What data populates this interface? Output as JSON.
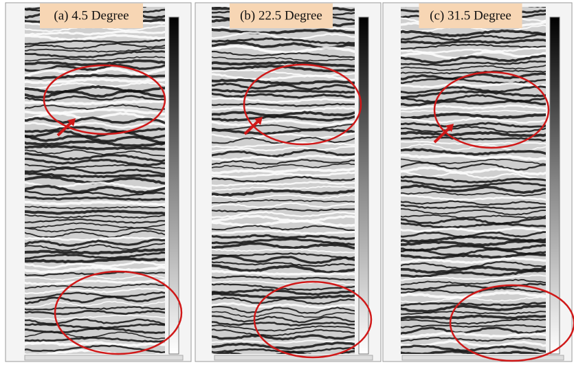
{
  "panels": [
    {
      "label": "(a) 4.5 Degree"
    },
    {
      "label": "(b) 22.5 Degree"
    },
    {
      "label": "(c) 31.5 Degree"
    }
  ]
}
